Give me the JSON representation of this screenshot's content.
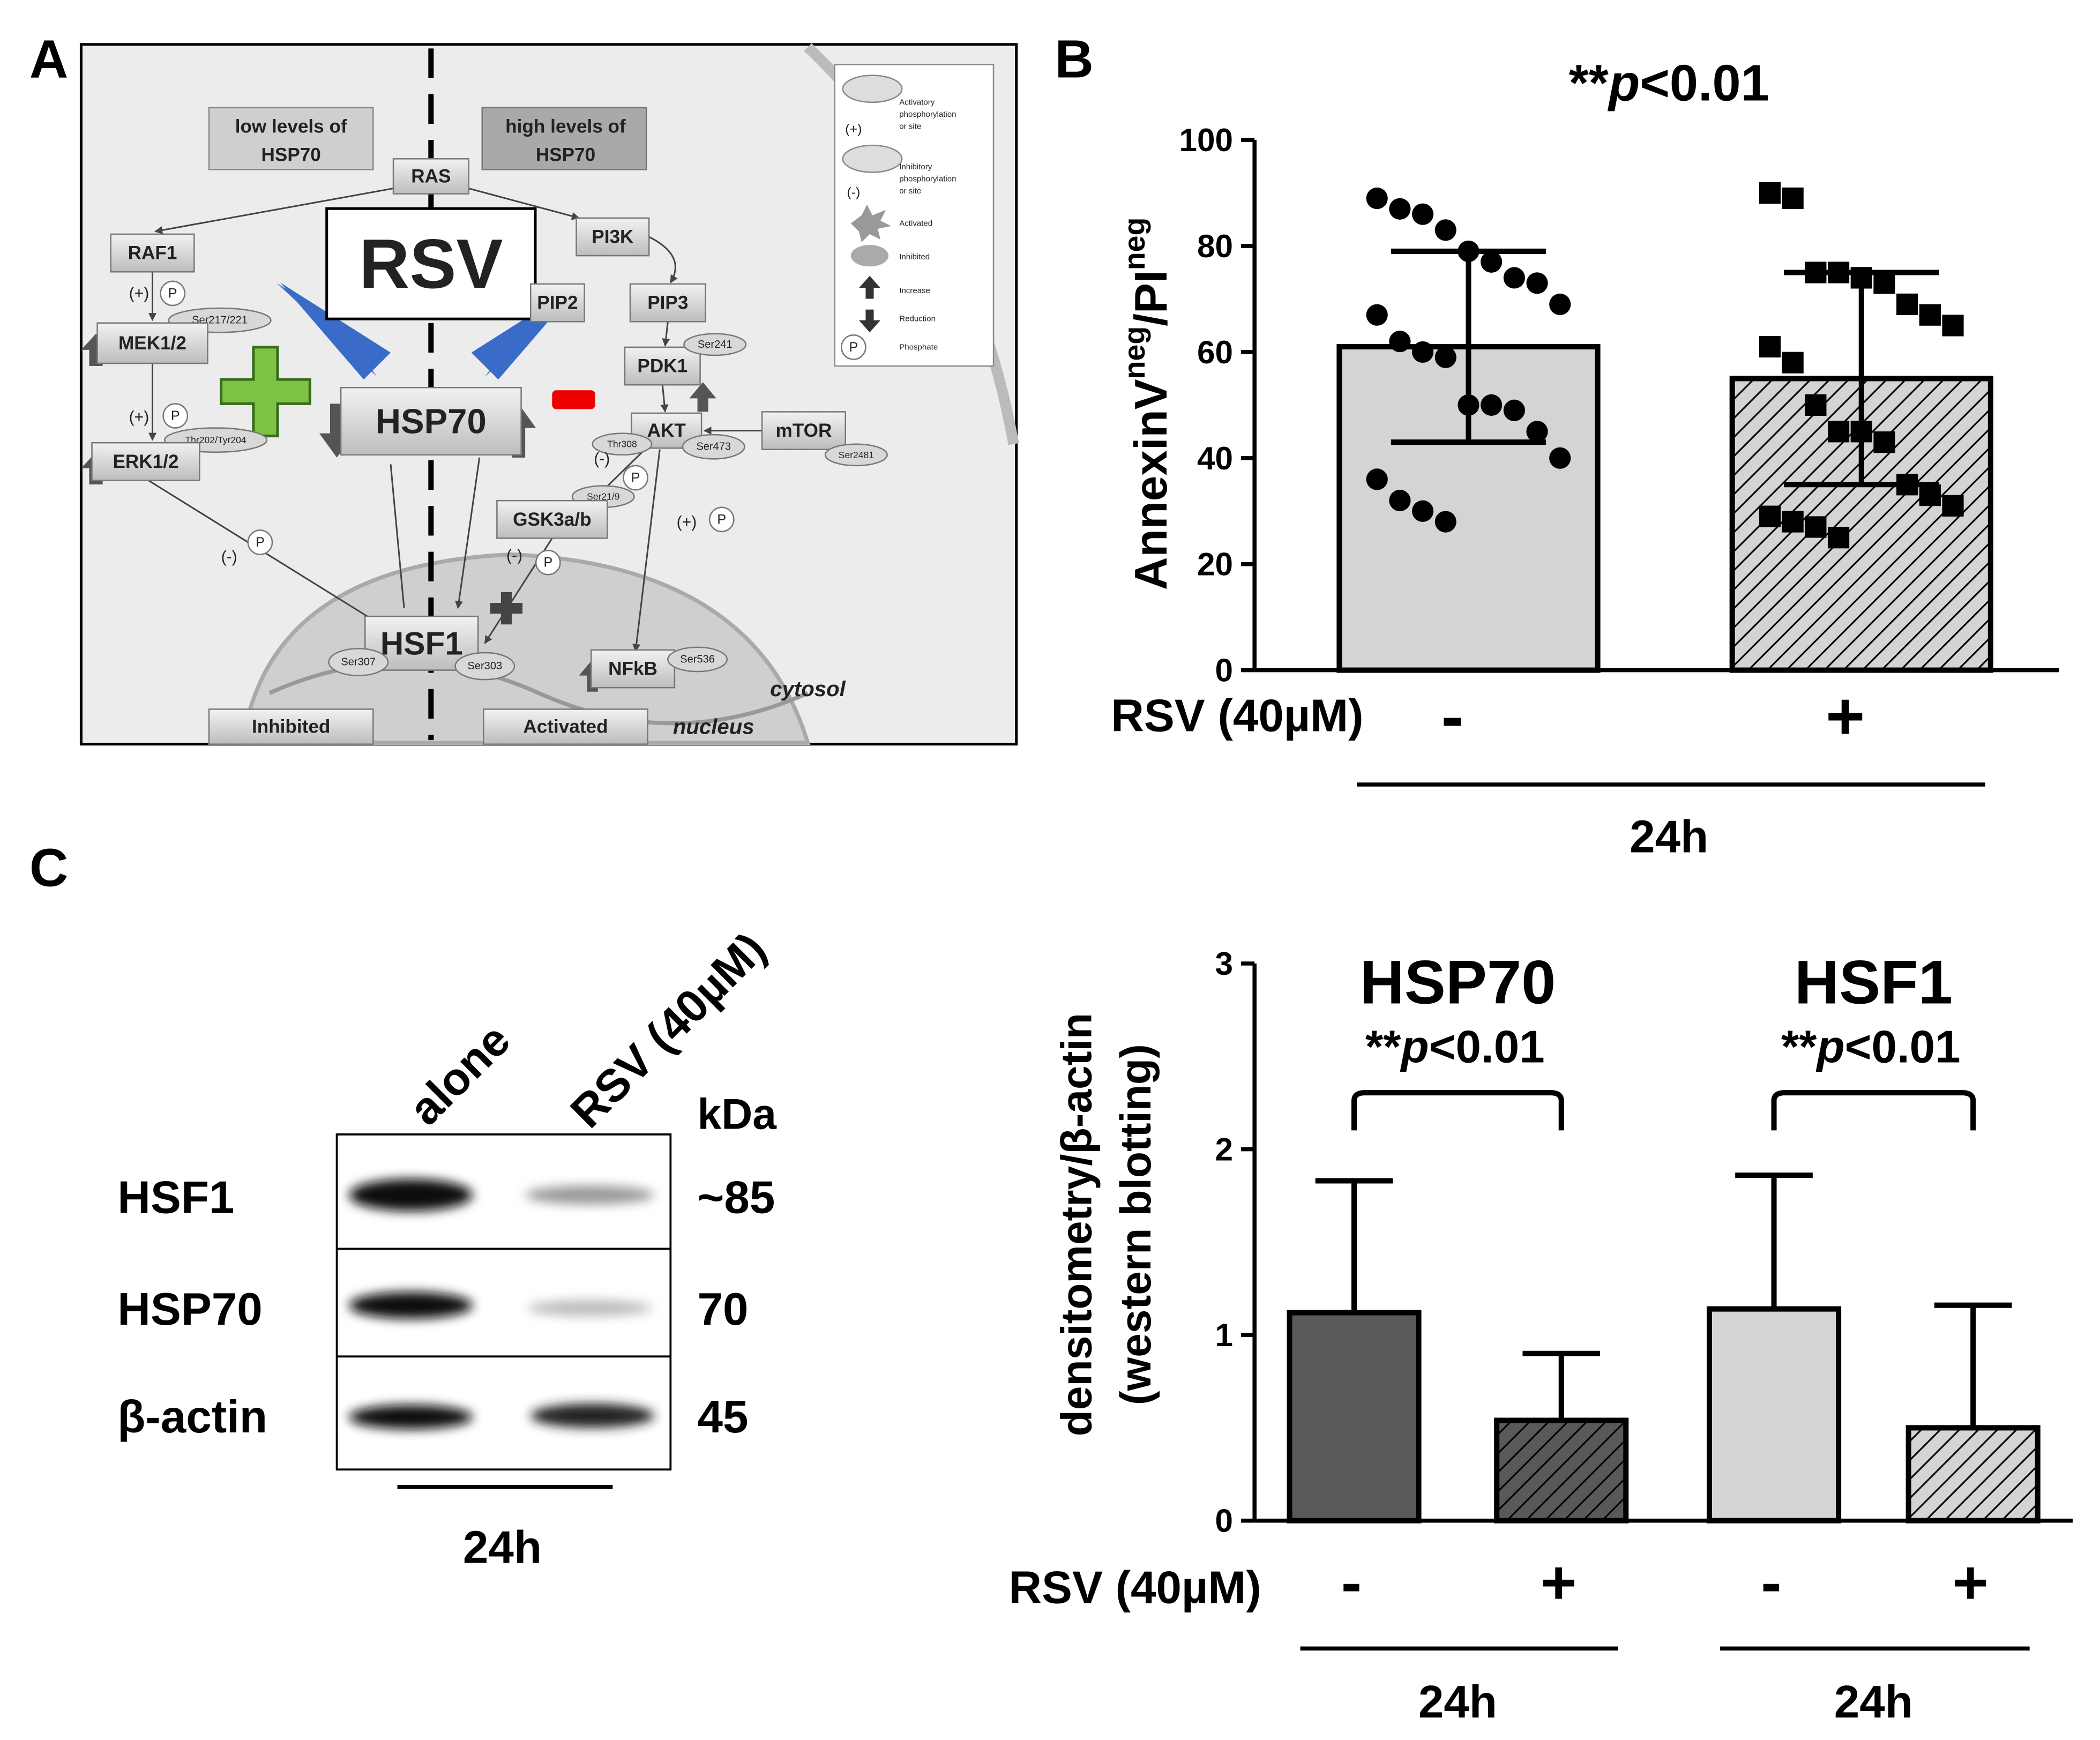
{
  "panel_labels": [
    "A",
    "B",
    "C"
  ],
  "diagram": {
    "labels": [
      "low levels of",
      "HSP70",
      "high levels of",
      "HSP70",
      "RAS",
      "RSV",
      "RAF1",
      "PI3K",
      "PIP2",
      "PIP3",
      "(+)",
      "P",
      "Ser217/221",
      "MEK1/2",
      "PDK1",
      "Ser241",
      "HSP70",
      "(+)",
      "P",
      "Thr202/Tyr204",
      "ERK1/2",
      "AKT",
      "Thr308",
      "Ser473",
      "mTOR",
      "Ser2481",
      "(-)",
      "P",
      "Ser21/9",
      "GSK3a/b",
      "(+)",
      "P",
      "P",
      "(-)",
      "(-)",
      "P",
      "HSF1",
      "Ser307",
      "Ser303",
      "NFkB",
      "Ser536",
      "cytosol",
      "nucleus",
      "Inhibited",
      "Activated",
      "(+)",
      "Activatory",
      "phosphorylation",
      "or site",
      "(-)",
      "Inhibitory",
      "phosphorylation",
      "or site",
      "Activated",
      "Inhibited",
      "Increase",
      "Reduction",
      "P",
      "Phosphate"
    ]
  },
  "chart_data": [
    {
      "type": "bar",
      "title_parts": [
        "**",
        "p",
        "<0.01"
      ],
      "ylabel_parts": [
        "AnnexinV",
        "neg",
        "/PI",
        "neg"
      ],
      "xlabel": "RSV (40µM)",
      "categories": [
        "-",
        "+"
      ],
      "group_label": "24h",
      "values": [
        61,
        55
      ],
      "errors": [
        18,
        20
      ],
      "error_direction": "both",
      "colors": [
        "#d4d4d4",
        "#d4d4d4"
      ],
      "hatch": [
        false,
        true
      ],
      "points": [
        [
          89,
          87,
          86,
          83,
          79,
          77,
          74,
          73,
          69,
          67,
          62,
          60,
          59,
          50,
          50,
          49,
          45,
          40,
          36,
          32,
          30,
          28
        ],
        [
          90,
          89,
          75,
          75,
          74,
          73,
          69,
          67,
          65,
          61,
          58,
          50,
          45,
          45,
          43,
          35,
          33,
          31,
          29,
          28,
          27,
          25
        ]
      ],
      "markers": [
        "circle",
        "square"
      ],
      "ylim": [
        0,
        100
      ],
      "yticks": [
        0,
        20,
        40,
        60,
        80,
        100
      ]
    },
    {
      "type": "bar",
      "ylabel": [
        "densitometry/β-actin",
        "(western blotting)"
      ],
      "xlabel": "RSV (40µM)",
      "categories": [
        "-",
        "+",
        "-",
        "+"
      ],
      "groups": [
        {
          "name": "HSP70",
          "annotation_parts": [
            "**",
            "p",
            "<0.01"
          ],
          "label": "24h"
        },
        {
          "name": "HSF1",
          "annotation_parts": [
            "**",
            "p",
            "<0.01"
          ],
          "label": "24h"
        }
      ],
      "values": [
        1.12,
        0.54,
        1.14,
        0.5
      ],
      "errors": [
        0.71,
        0.36,
        0.72,
        0.66
      ],
      "error_direction": "up",
      "colors": [
        "#595959",
        "#595959",
        "#d4d4d4",
        "#d4d4d4"
      ],
      "hatch": [
        false,
        true,
        false,
        true
      ],
      "ylim": [
        0,
        3
      ],
      "yticks": [
        0,
        1,
        2,
        3
      ]
    }
  ],
  "blot": {
    "lanes": [
      "alone",
      "RSV (40µM)"
    ],
    "unit": "kDa",
    "rows": [
      {
        "name": "HSF1",
        "kda": "~85"
      },
      {
        "name": "HSP70",
        "kda": "70"
      },
      {
        "name": "β-actin",
        "kda": "45"
      }
    ],
    "duration": "24h"
  }
}
